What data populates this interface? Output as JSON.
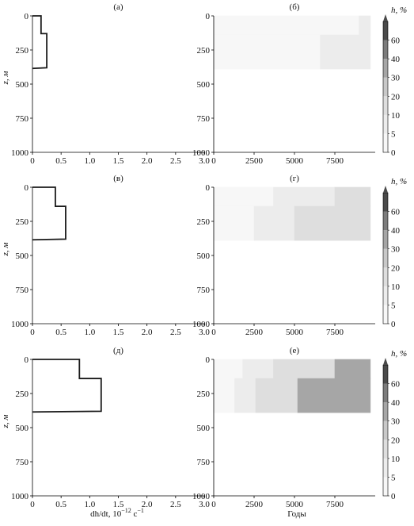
{
  "colors": {
    "axis": "#000000",
    "profile_line": "#1a1a1a",
    "levels": [
      "#f7f7f7",
      "#ececec",
      "#dedede",
      "#c8c8c8",
      "#a6a6a6",
      "#7c7c7c",
      "#4a4a4a"
    ]
  },
  "shared": {
    "left_xlabel_text": "dh/dt, 10",
    "left_xlabel_exp": "−12",
    "left_xlabel_unit": " с",
    "left_xlabel_unit_exp": "−1",
    "right_xlabel": "Годы",
    "ylabel": "z, м",
    "colorbar_title": "h, %",
    "colorbar_ticks": [
      "0",
      "5",
      "10",
      "20",
      "30",
      "40",
      "60"
    ]
  },
  "chart_data": [
    {
      "id": "a",
      "label": "(а)",
      "type": "line",
      "xlabel": "",
      "ylabel": "z, м",
      "xlim": [
        0,
        3.0
      ],
      "ylim": [
        1000,
        0
      ],
      "xticks": [
        "0",
        "0.5",
        "1.0",
        "1.5",
        "2.0",
        "2.5",
        "3.0"
      ],
      "yticks": [
        "0",
        "250",
        "500",
        "750",
        "1000"
      ],
      "series": [
        {
          "points": [
            [
              0,
              0
            ],
            [
              0.15,
              0
            ],
            [
              0.15,
              130
            ],
            [
              0.25,
              130
            ],
            [
              0.25,
              380
            ],
            [
              0,
              385
            ]
          ]
        }
      ]
    },
    {
      "id": "b",
      "label": "(б)",
      "type": "heatmap",
      "xlabel": "",
      "ylabel": "",
      "xlim": [
        0,
        10000
      ],
      "ylim": [
        1000,
        0
      ],
      "xticks": [
        "0",
        "2500",
        "5000",
        "7500"
      ],
      "yticks": [
        "0",
        "250",
        "500",
        "750",
        "1000"
      ],
      "fill_depth": 390,
      "segments": [
        {
          "t_start": 0,
          "t_end": 9700,
          "z_top": 0,
          "z_bottom": 140,
          "level": 0
        },
        {
          "t_start": 9000,
          "t_end": 9700,
          "z_top": 0,
          "z_bottom": 140,
          "level": 1
        },
        {
          "t_start": 0,
          "t_end": 6600,
          "z_top": 140,
          "z_bottom": 390,
          "level": 0
        },
        {
          "t_start": 6600,
          "t_end": 9700,
          "z_top": 140,
          "z_bottom": 390,
          "level": 1
        }
      ]
    },
    {
      "id": "v",
      "label": "(в)",
      "type": "line",
      "xlabel": "",
      "ylabel": "z, м",
      "xlim": [
        0,
        3.0
      ],
      "ylim": [
        1000,
        0
      ],
      "xticks": [
        "0",
        "0.5",
        "1.0",
        "1.5",
        "2.0",
        "2.5",
        "3.0"
      ],
      "yticks": [
        "0",
        "250",
        "500",
        "750",
        "1000"
      ],
      "series": [
        {
          "points": [
            [
              0,
              0
            ],
            [
              0.4,
              0
            ],
            [
              0.4,
              140
            ],
            [
              0.58,
              140
            ],
            [
              0.58,
              380
            ],
            [
              0,
              385
            ]
          ]
        }
      ]
    },
    {
      "id": "g",
      "label": "(г)",
      "type": "heatmap",
      "xlabel": "",
      "ylabel": "",
      "xlim": [
        0,
        10000
      ],
      "ylim": [
        1000,
        0
      ],
      "xticks": [
        "0",
        "2500",
        "5000",
        "7500"
      ],
      "yticks": [
        "0",
        "250",
        "500",
        "750",
        "1000"
      ],
      "fill_depth": 390,
      "segments": [
        {
          "t_start": 0,
          "t_end": 3700,
          "z_top": 0,
          "z_bottom": 140,
          "level": 0
        },
        {
          "t_start": 3700,
          "t_end": 7500,
          "z_top": 0,
          "z_bottom": 140,
          "level": 1
        },
        {
          "t_start": 7500,
          "t_end": 9700,
          "z_top": 0,
          "z_bottom": 140,
          "level": 2
        },
        {
          "t_start": 0,
          "t_end": 2500,
          "z_top": 140,
          "z_bottom": 390,
          "level": 0
        },
        {
          "t_start": 2500,
          "t_end": 5000,
          "z_top": 140,
          "z_bottom": 390,
          "level": 1
        },
        {
          "t_start": 5000,
          "t_end": 9700,
          "z_top": 140,
          "z_bottom": 390,
          "level": 2
        }
      ]
    },
    {
      "id": "d",
      "label": "(д)",
      "type": "line",
      "xlabel": "dh/dt, 10−12 с−1",
      "ylabel": "z, м",
      "xlim": [
        0,
        3.0
      ],
      "ylim": [
        1000,
        0
      ],
      "xticks": [
        "0",
        "0.5",
        "1.0",
        "1.5",
        "2.0",
        "2.5",
        "3.0"
      ],
      "yticks": [
        "0",
        "250",
        "500",
        "750",
        "1000"
      ],
      "series": [
        {
          "points": [
            [
              0,
              0
            ],
            [
              0.82,
              0
            ],
            [
              0.82,
              140
            ],
            [
              1.2,
              140
            ],
            [
              1.2,
              380
            ],
            [
              0,
              385
            ]
          ]
        }
      ]
    },
    {
      "id": "e",
      "label": "(е)",
      "type": "heatmap",
      "xlabel": "Годы",
      "ylabel": "",
      "xlim": [
        0,
        10000
      ],
      "ylim": [
        1000,
        0
      ],
      "xticks": [
        "0",
        "2500",
        "5000",
        "7500"
      ],
      "yticks": [
        "0",
        "250",
        "500",
        "750",
        "1000"
      ],
      "fill_depth": 390,
      "segments": [
        {
          "t_start": 0,
          "t_end": 1800,
          "z_top": 0,
          "z_bottom": 140,
          "level": 0
        },
        {
          "t_start": 1800,
          "t_end": 3700,
          "z_top": 0,
          "z_bottom": 140,
          "level": 1
        },
        {
          "t_start": 3700,
          "t_end": 7500,
          "z_top": 0,
          "z_bottom": 140,
          "level": 2
        },
        {
          "t_start": 7500,
          "t_end": 9700,
          "z_top": 0,
          "z_bottom": 140,
          "level": 4
        },
        {
          "t_start": 0,
          "t_end": 1300,
          "z_top": 140,
          "z_bottom": 390,
          "level": 0
        },
        {
          "t_start": 1300,
          "t_end": 2600,
          "z_top": 140,
          "z_bottom": 390,
          "level": 1
        },
        {
          "t_start": 2600,
          "t_end": 5200,
          "z_top": 140,
          "z_bottom": 390,
          "level": 2
        },
        {
          "t_start": 5200,
          "t_end": 9700,
          "z_top": 140,
          "z_bottom": 390,
          "level": 4
        }
      ]
    }
  ]
}
